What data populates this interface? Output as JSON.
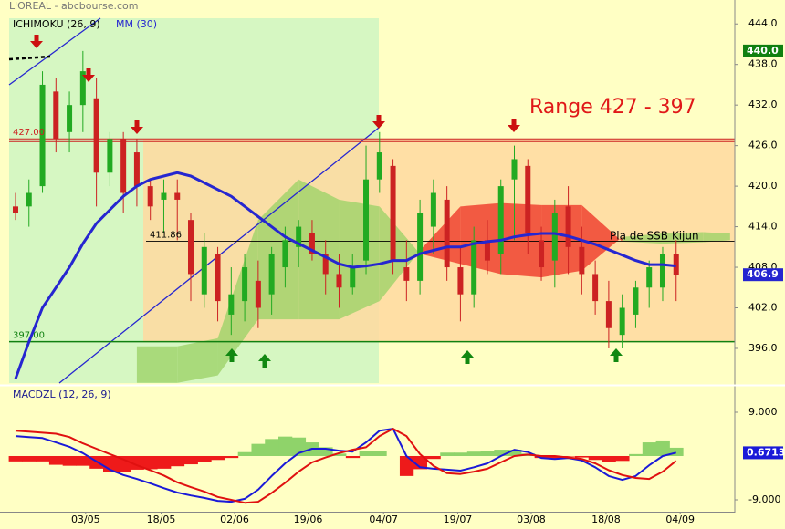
{
  "chart_data": [
    {
      "type": "candlestick",
      "title": "L'OREAL - abcbourse.com",
      "up_color": "#22aa22",
      "down_color": "#cc2222",
      "xlim": [
        -1.15,
        53.35
      ],
      "ylim": [
        390.6,
        447
      ],
      "yticks": [
        {
          "value": 444,
          "label": "444.0"
        },
        {
          "value": 438,
          "label": "438.0"
        },
        {
          "value": 432,
          "label": "432.0"
        },
        {
          "value": 426,
          "label": "426.0"
        },
        {
          "value": 420,
          "label": "420.0"
        },
        {
          "value": 414,
          "label": "414.0"
        },
        {
          "value": 408,
          "label": "408.0"
        },
        {
          "value": 402,
          "label": "402.0"
        },
        {
          "value": 396,
          "label": "396.0"
        }
      ],
      "open": [
        417,
        417,
        420,
        434,
        428,
        432,
        433,
        422,
        427,
        425,
        420,
        418,
        419,
        415,
        404,
        410,
        401,
        403,
        406,
        404,
        408,
        411,
        413,
        410,
        407,
        405,
        409,
        421,
        423,
        408,
        406,
        414,
        418,
        408,
        404,
        412,
        410,
        421,
        423,
        412,
        409,
        417,
        411,
        407,
        403,
        398,
        401,
        405,
        405,
        410
      ],
      "high": [
        419,
        421,
        437,
        436,
        434,
        440,
        436,
        428,
        428,
        427,
        421,
        421,
        421,
        416,
        413,
        411,
        408,
        410,
        409,
        411,
        414,
        415,
        415,
        412,
        410,
        410,
        426,
        428,
        424,
        412,
        418,
        421,
        420,
        411,
        414,
        415,
        421,
        426,
        424,
        414,
        418,
        420,
        414,
        409,
        406,
        404,
        406,
        409,
        411,
        412
      ],
      "low": [
        415,
        414,
        419,
        425,
        425,
        428,
        417,
        420,
        416,
        417,
        415,
        413,
        412,
        403,
        402,
        400,
        398,
        400,
        399,
        401,
        405,
        408,
        409,
        404,
        402,
        404,
        407,
        419,
        407,
        403,
        404,
        410,
        406,
        400,
        402,
        407,
        407,
        412,
        410,
        406,
        405,
        407,
        404,
        401,
        396,
        396,
        399,
        402,
        403,
        403
      ],
      "close": [
        416,
        419,
        435,
        427,
        432,
        437,
        422,
        427,
        419,
        420,
        417,
        419,
        418,
        407,
        411,
        403,
        404,
        408,
        402,
        410,
        412,
        414,
        410,
        407,
        405,
        408,
        421,
        425,
        409,
        406,
        416,
        419,
        408,
        404,
        412,
        409,
        420,
        424,
        413,
        408,
        416,
        411,
        407,
        403,
        399,
        402,
        405,
        408,
        410,
        406.9
      ],
      "series": [
        {
          "name": "MM (30)",
          "color": "#2626d0",
          "values": [
            391.5,
            397,
            402,
            405,
            408,
            411.5,
            414.5,
            416.5,
            418.5,
            420,
            421,
            421.5,
            422,
            421.5,
            420.5,
            419.5,
            418.5,
            417,
            415.5,
            414,
            412.5,
            411.5,
            410.5,
            409.5,
            408.5,
            408,
            408.2,
            408.5,
            409,
            409,
            410,
            410.5,
            411,
            411,
            411.5,
            411.8,
            412,
            412.5,
            412.8,
            413,
            413,
            412.6,
            412,
            411.4,
            410.6,
            409.8,
            409,
            408.4,
            408.4,
            408.2
          ]
        }
      ],
      "ichimoku": {
        "name": "ICHIMOKU (26, 9)",
        "up_color": "#9fd36a",
        "down_color": "#f03a2a",
        "x": [
          9,
          12,
          15,
          18,
          21,
          24,
          27,
          30,
          33,
          36,
          39,
          42,
          45,
          48,
          51,
          53
        ],
        "span_a": [
          396.3,
          396.3,
          397.5,
          415,
          421,
          418,
          417,
          410,
          408.5,
          407,
          406.5,
          407.5,
          412.5,
          413,
          413.2,
          413
        ],
        "span_b": [
          390.9,
          390.9,
          392,
          400.3,
          400.3,
          400.3,
          403,
          410.5,
          417,
          417.5,
          417.2,
          417.2,
          411.8,
          411.5,
          411.7,
          412
        ]
      },
      "hlines": [
        {
          "value": 427,
          "label": "427.00",
          "color": "#cc2020"
        },
        {
          "value": 397,
          "label": "397.00",
          "color": "#108010"
        },
        {
          "value": 411.86,
          "label": "411.86",
          "color": "#000000"
        }
      ],
      "range_color": "#ffd9a0",
      "price_labels": [
        {
          "value": 440,
          "label": "440.0",
          "color": "#108010"
        },
        {
          "value": 406.9,
          "label": "406.9",
          "color": "#2626d0"
        }
      ],
      "annotations": [
        "Range 427 - 397",
        "Pla de SSB Kijun"
      ]
    },
    {
      "type": "line",
      "title": "MACDZL (12, 26, 9)",
      "xlim": [
        -1.15,
        53.35
      ],
      "ylim": [
        -11.25,
        14.06
      ],
      "yticks": [
        {
          "value": 9,
          "label": "9.000"
        },
        {
          "value": -9,
          "label": "-9.000"
        }
      ],
      "xticks": [
        {
          "value": 5.2,
          "label": "03/05"
        },
        {
          "value": 10.8,
          "label": "18/05"
        },
        {
          "value": 16.25,
          "label": "02/06"
        },
        {
          "value": 21.7,
          "label": "19/06"
        },
        {
          "value": 27.3,
          "label": "04/07"
        },
        {
          "value": 32.8,
          "label": "19/07"
        },
        {
          "value": 38.25,
          "label": "03/08"
        },
        {
          "value": 43.8,
          "label": "18/08"
        },
        {
          "value": 49.3,
          "label": "04/09"
        }
      ],
      "series": [
        {
          "color": "#1a1ad8",
          "values": [
            4.1,
            3.9,
            3.7,
            2.8,
            1.9,
            0.6,
            -1.1,
            -2.8,
            -3.9,
            -4.7,
            -5.6,
            -6.6,
            -7.5,
            -8.1,
            -8.6,
            -9.2,
            -9.4,
            -8.8,
            -6.9,
            -4.1,
            -1.5,
            0.6,
            1.5,
            1.5,
            1.1,
            0.9,
            2.8,
            5.2,
            5.6,
            0,
            -2.3,
            -2.6,
            -2.8,
            -3.0,
            -2.3,
            -1.5,
            0,
            1.3,
            0.8,
            -0.4,
            -0.6,
            -0.4,
            -0.9,
            -2.3,
            -4.1,
            -4.9,
            -4.1,
            -1.9,
            0,
            0.7
          ]
        },
        {
          "color": "#e01010",
          "values": [
            5.2,
            5.0,
            4.8,
            4.6,
            3.9,
            2.6,
            1.5,
            0.4,
            -0.7,
            -1.9,
            -2.9,
            -4.0,
            -5.4,
            -6.4,
            -7.3,
            -8.4,
            -9.0,
            -9.6,
            -9.4,
            -7.6,
            -5.5,
            -3.2,
            -1.3,
            -0.3,
            0.6,
            1.3,
            1.8,
            4.1,
            5.6,
            4.1,
            0.4,
            -2.0,
            -3.5,
            -3.7,
            -3.2,
            -2.6,
            -1.3,
            0,
            0.3,
            0,
            0,
            -0.3,
            -0.6,
            -1.5,
            -2.9,
            -3.9,
            -4.5,
            -4.7,
            -3.2,
            -1.0
          ]
        }
      ],
      "histogram": {
        "up_color": "#8fd36a",
        "down_color": "#ee1a1a",
        "values": [
          -1.1,
          -1.1,
          -1.1,
          -1.8,
          -2.0,
          -2.0,
          -2.6,
          -3.2,
          -3.2,
          -2.8,
          -2.7,
          -2.6,
          -2.1,
          -1.7,
          -1.3,
          -0.8,
          -0.4,
          0.8,
          2.5,
          3.5,
          4.0,
          3.8,
          2.8,
          1.8,
          0.5,
          -0.4,
          1.0,
          1.1,
          0,
          -4.1,
          -2.7,
          -0.6,
          0.7,
          0.7,
          0.9,
          1.1,
          1.3,
          1.3,
          0.5,
          -0.4,
          -0.6,
          -0.1,
          -0.3,
          -0.8,
          -1.2,
          -1.0,
          0.4,
          2.8,
          3.2,
          1.7
        ]
      },
      "last_value": 0.6713,
      "last_color": "#1a1ad8"
    }
  ]
}
